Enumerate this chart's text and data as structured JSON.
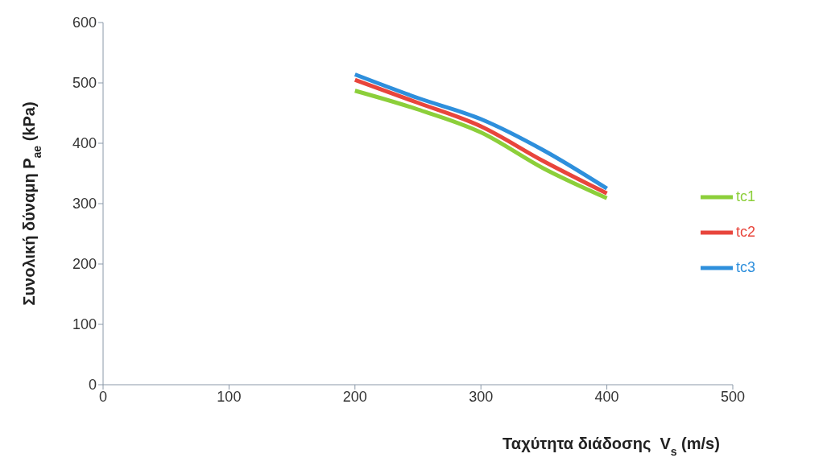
{
  "chart_data": {
    "type": "line",
    "xlabel": "Ταχύτητα διάδοσης  V$_{s}$ (m/s)",
    "ylabel": "Συνολική δύναμη P$_{ae}$ (kPa)",
    "x": [
      200,
      250,
      300,
      350,
      400
    ],
    "xlim": [
      0,
      500
    ],
    "xticks": [
      0,
      100,
      200,
      300,
      400,
      500
    ],
    "ylim": [
      0,
      600
    ],
    "yticks": [
      0,
      100,
      200,
      300,
      400,
      500,
      600
    ],
    "grid": false,
    "legend": "right",
    "marker": "none",
    "line_style": "solid",
    "series": [
      {
        "name": "tc3",
        "color": "#2e8fdc",
        "values": [
          514,
          475,
          440,
          388,
          325
        ]
      },
      {
        "name": "tc2",
        "color": "#e8453c",
        "values": [
          505,
          467,
          428,
          370,
          317
        ]
      },
      {
        "name": "tc1",
        "color": "#8ccf3a",
        "values": [
          487,
          456,
          418,
          358,
          309
        ]
      }
    ]
  }
}
